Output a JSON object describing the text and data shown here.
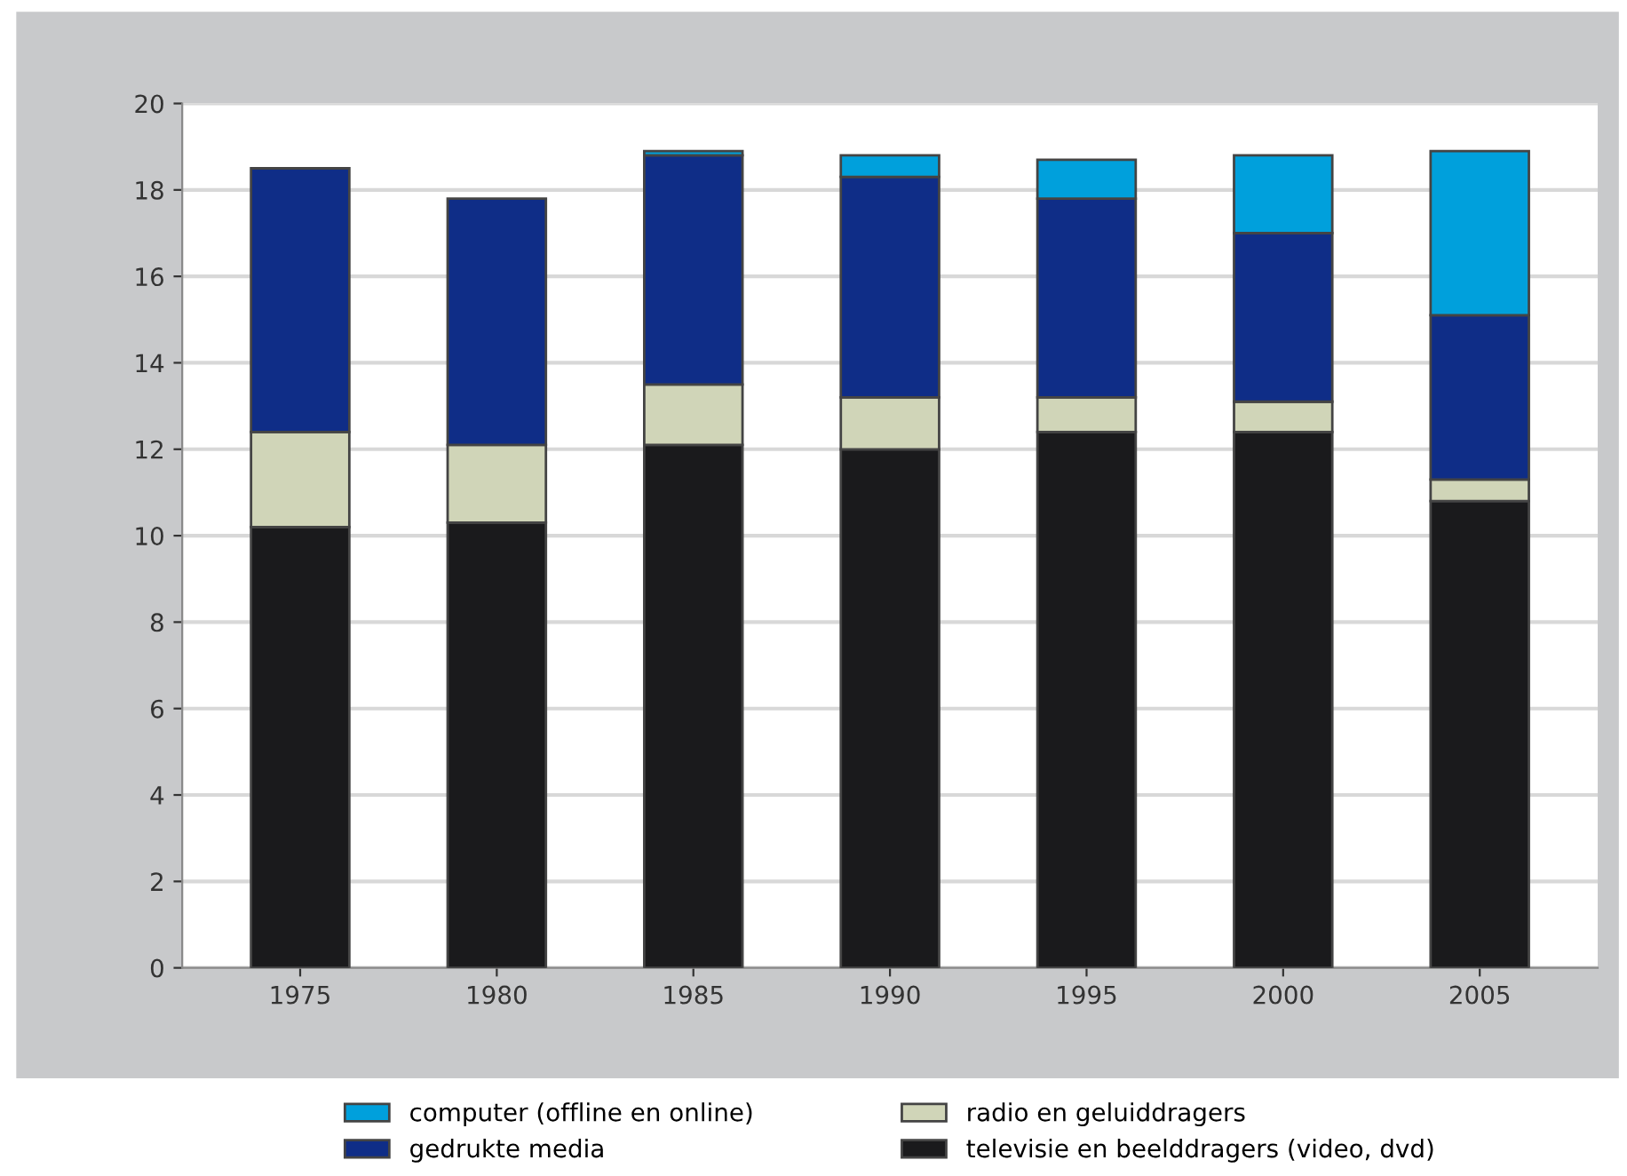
{
  "chart_data": {
    "type": "bar",
    "stacked": true,
    "categories": [
      "1975",
      "1980",
      "1985",
      "1990",
      "1995",
      "2000",
      "2005"
    ],
    "series": [
      {
        "name": "televisie en beelddragers (video, dvd)",
        "color": "#1a1a1c",
        "values": [
          10.2,
          10.3,
          12.1,
          12.0,
          12.4,
          12.4,
          10.8
        ]
      },
      {
        "name": "radio en geluiddragers",
        "color": "#d0d5b8",
        "values": [
          2.2,
          1.8,
          1.4,
          1.2,
          0.8,
          0.7,
          0.5
        ]
      },
      {
        "name": "gedrukte media",
        "color": "#0f2d87",
        "values": [
          6.1,
          5.7,
          5.3,
          5.1,
          4.6,
          3.9,
          3.8
        ]
      },
      {
        "name": "computer (offline en online)",
        "color": "#00a0dc",
        "values": [
          null,
          null,
          0.1,
          0.5,
          0.9,
          1.8,
          3.8
        ]
      }
    ],
    "ylim": [
      0,
      20
    ],
    "yticks": [
      0,
      2,
      4,
      6,
      8,
      10,
      12,
      14,
      16,
      18,
      20
    ],
    "grid": "y",
    "legend": "bottom"
  }
}
